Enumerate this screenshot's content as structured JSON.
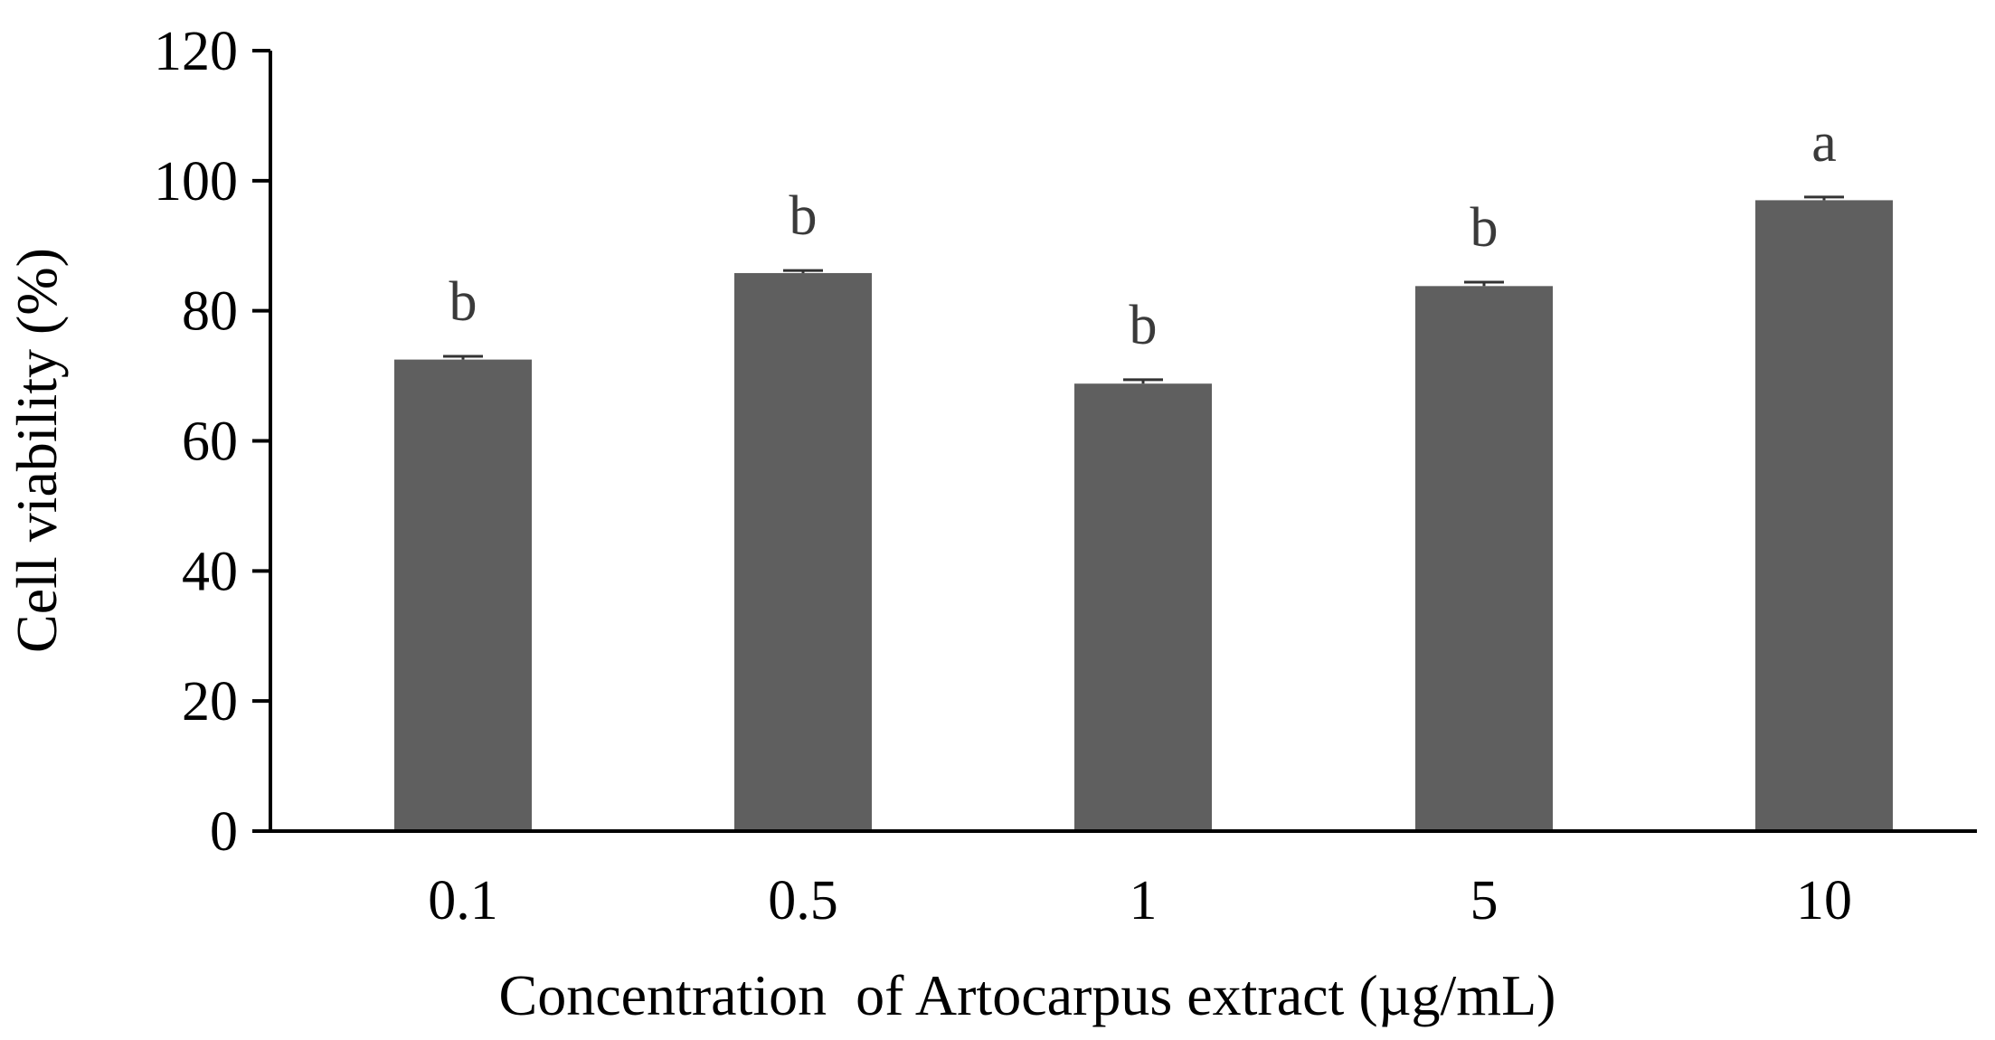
{
  "chart_data": {
    "type": "bar",
    "categories": [
      "0.1",
      "0.5",
      "1",
      "5",
      "10"
    ],
    "values": [
      72.5,
      85.8,
      68.8,
      83.8,
      97.0
    ],
    "errors": [
      0.5,
      0.4,
      0.6,
      0.6,
      0.5
    ],
    "significance_labels": [
      "b",
      "b",
      "b",
      "b",
      "a"
    ],
    "xlabel": "Concentration  of Artocarpus extract (µg/mL)",
    "ylabel": "Cell viability (%)",
    "ylim": [
      0,
      120
    ],
    "yticks": [
      "0",
      "20",
      "40",
      "60",
      "80",
      "100",
      "120"
    ],
    "grid": false,
    "legend": "none",
    "bar_color": "#5f5f5f",
    "axis_color": "#000000",
    "label_color": "#3a3a3a"
  }
}
